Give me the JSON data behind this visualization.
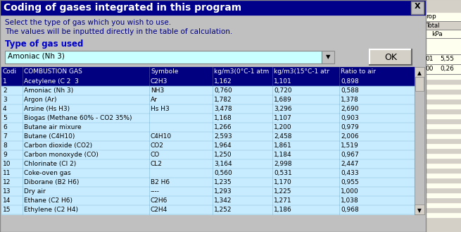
{
  "title": "Coding of gases integrated in this program",
  "subtitle_line1": "Select the type of gas which you wish to use.",
  "subtitle_line2": "The values will be inputted directly in the table of calculation.",
  "type_label": "Type of gas used",
  "dropdown_text": "Amoniac (Nh 3)",
  "ok_button": "OK",
  "col_headers": [
    "Codi",
    "COMBUSTION GAS",
    "Symbole",
    "kg/m3(0°C-1 atm",
    "kg/m3(15°C-1 atr",
    "Ratio to air"
  ],
  "rows": [
    [
      "1",
      "Acetylene (C 2  3",
      "C2H3",
      "1,162",
      "1,101",
      "0,898"
    ],
    [
      "2",
      "Amoniac (Nh 3)",
      "NH3",
      "0,760",
      "0,720",
      "0,588"
    ],
    [
      "3",
      "Argon (Ar)",
      "Ar",
      "1,782",
      "1,689",
      "1,378"
    ],
    [
      "4",
      "Arsine (Hs H3)",
      "Hs H3",
      "3,478",
      "3,296",
      "2,690"
    ],
    [
      "5",
      "Biogas (Methane 60% - CO2 35%)",
      "",
      "1,168",
      "1,107",
      "0,903"
    ],
    [
      "6",
      "Butane air mixure",
      "",
      "1,266",
      "1,200",
      "0,979"
    ],
    [
      "7",
      "Butane (C4H10)",
      "C4H10",
      "2,593",
      "2,458",
      "2,006"
    ],
    [
      "8",
      "Carbon dioxide (CO2)",
      "CO2",
      "1,964",
      "1,861",
      "1,519"
    ],
    [
      "9",
      "Carbon monoxyde (CO)",
      "CO",
      "1,250",
      "1,184",
      "0,967"
    ],
    [
      "10",
      "Chlorinate (Cl 2)",
      "CL2",
      "3,164",
      "2,998",
      "2,447"
    ],
    [
      "11",
      "Coke-oven gas",
      "",
      "0,560",
      "0,531",
      "0,433"
    ],
    [
      "12",
      "Diborane (B2 H6)",
      "B2 H6",
      "1,235",
      "1,170",
      "0,955"
    ],
    [
      "13",
      "Dry air",
      "----",
      "1,293",
      "1,225",
      "1,000"
    ],
    [
      "14",
      "Ethane (C2 H6)",
      "C2H6",
      "1,342",
      "1,271",
      "1,038"
    ],
    [
      "15",
      "Ethylene (C2 H4)",
      "C2H4",
      "1,252",
      "1,186",
      "0,968"
    ]
  ],
  "title_bg": "#00008B",
  "title_fg": "#FFFFFF",
  "header_bg": "#000080",
  "selected_row_bg": "#000080",
  "selected_row_fg": "#FFFFFF",
  "row_bg": "#C8ECFF",
  "body_bg": "#C0C0C0",
  "type_label_color": "#0000CC",
  "subtitle_color": "#000080",
  "fig_bg": "#C0C0C0",
  "dialog_bg": "#C0C0C0",
  "right_panel_bg": "#FFFFF0",
  "right_header_bg": "#D4D0C8"
}
